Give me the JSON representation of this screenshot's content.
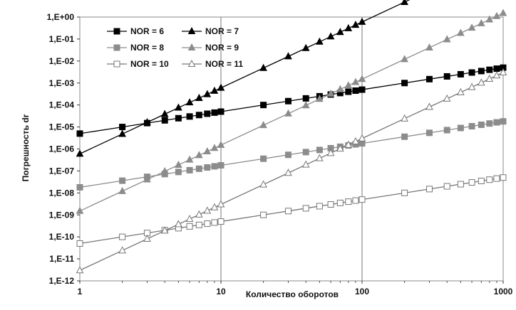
{
  "chart_data": {
    "type": "line",
    "x_scale": "log",
    "y_scale": "log",
    "xlim": [
      1,
      1000
    ],
    "ylim": [
      1e-12,
      1
    ],
    "xlabel": "Количество оборотов",
    "ylabel": "Погрешность dr",
    "x_tick_labels": [
      "1",
      "10",
      "100",
      "1000"
    ],
    "y_tick_labels": [
      "1,E+00",
      "1,E-01",
      "1,E-02",
      "1,E-03",
      "1,E-04",
      "1,E-05",
      "1,E-06",
      "1,E-07",
      "1,E-08",
      "1,E-09",
      "1,E-10",
      "1,E-11",
      "1,E-12"
    ],
    "grid": "vertical lines at decades",
    "legend_position": "top-left",
    "x": [
      1,
      2,
      3,
      4,
      5,
      6,
      7,
      8,
      9,
      10,
      20,
      30,
      40,
      50,
      60,
      70,
      80,
      90,
      100,
      200,
      300,
      400,
      500,
      600,
      700,
      800,
      900,
      1000
    ],
    "series": [
      {
        "name": "NOR = 6",
        "color": "#000000",
        "marker": "square-filled",
        "y_at_1": 5e-06,
        "slope": 1
      },
      {
        "name": "NOR = 7",
        "color": "#000000",
        "marker": "triangle-filled",
        "y_at_1": 6e-07,
        "slope": 3
      },
      {
        "name": "NOR = 8",
        "color": "#8c8c8c",
        "marker": "square-filled",
        "y_at_1": 1.8e-08,
        "slope": 1
      },
      {
        "name": "NOR = 9",
        "color": "#8c8c8c",
        "marker": "triangle-filled",
        "y_at_1": 1.5e-09,
        "slope": 3
      },
      {
        "name": "NOR = 10",
        "color": "#777777",
        "marker": "square-open",
        "y_at_1": 5e-11,
        "slope": 1
      },
      {
        "name": "NOR = 11",
        "color": "#777777",
        "marker": "triangle-open",
        "y_at_1": 3e-12,
        "slope": 3
      }
    ]
  }
}
